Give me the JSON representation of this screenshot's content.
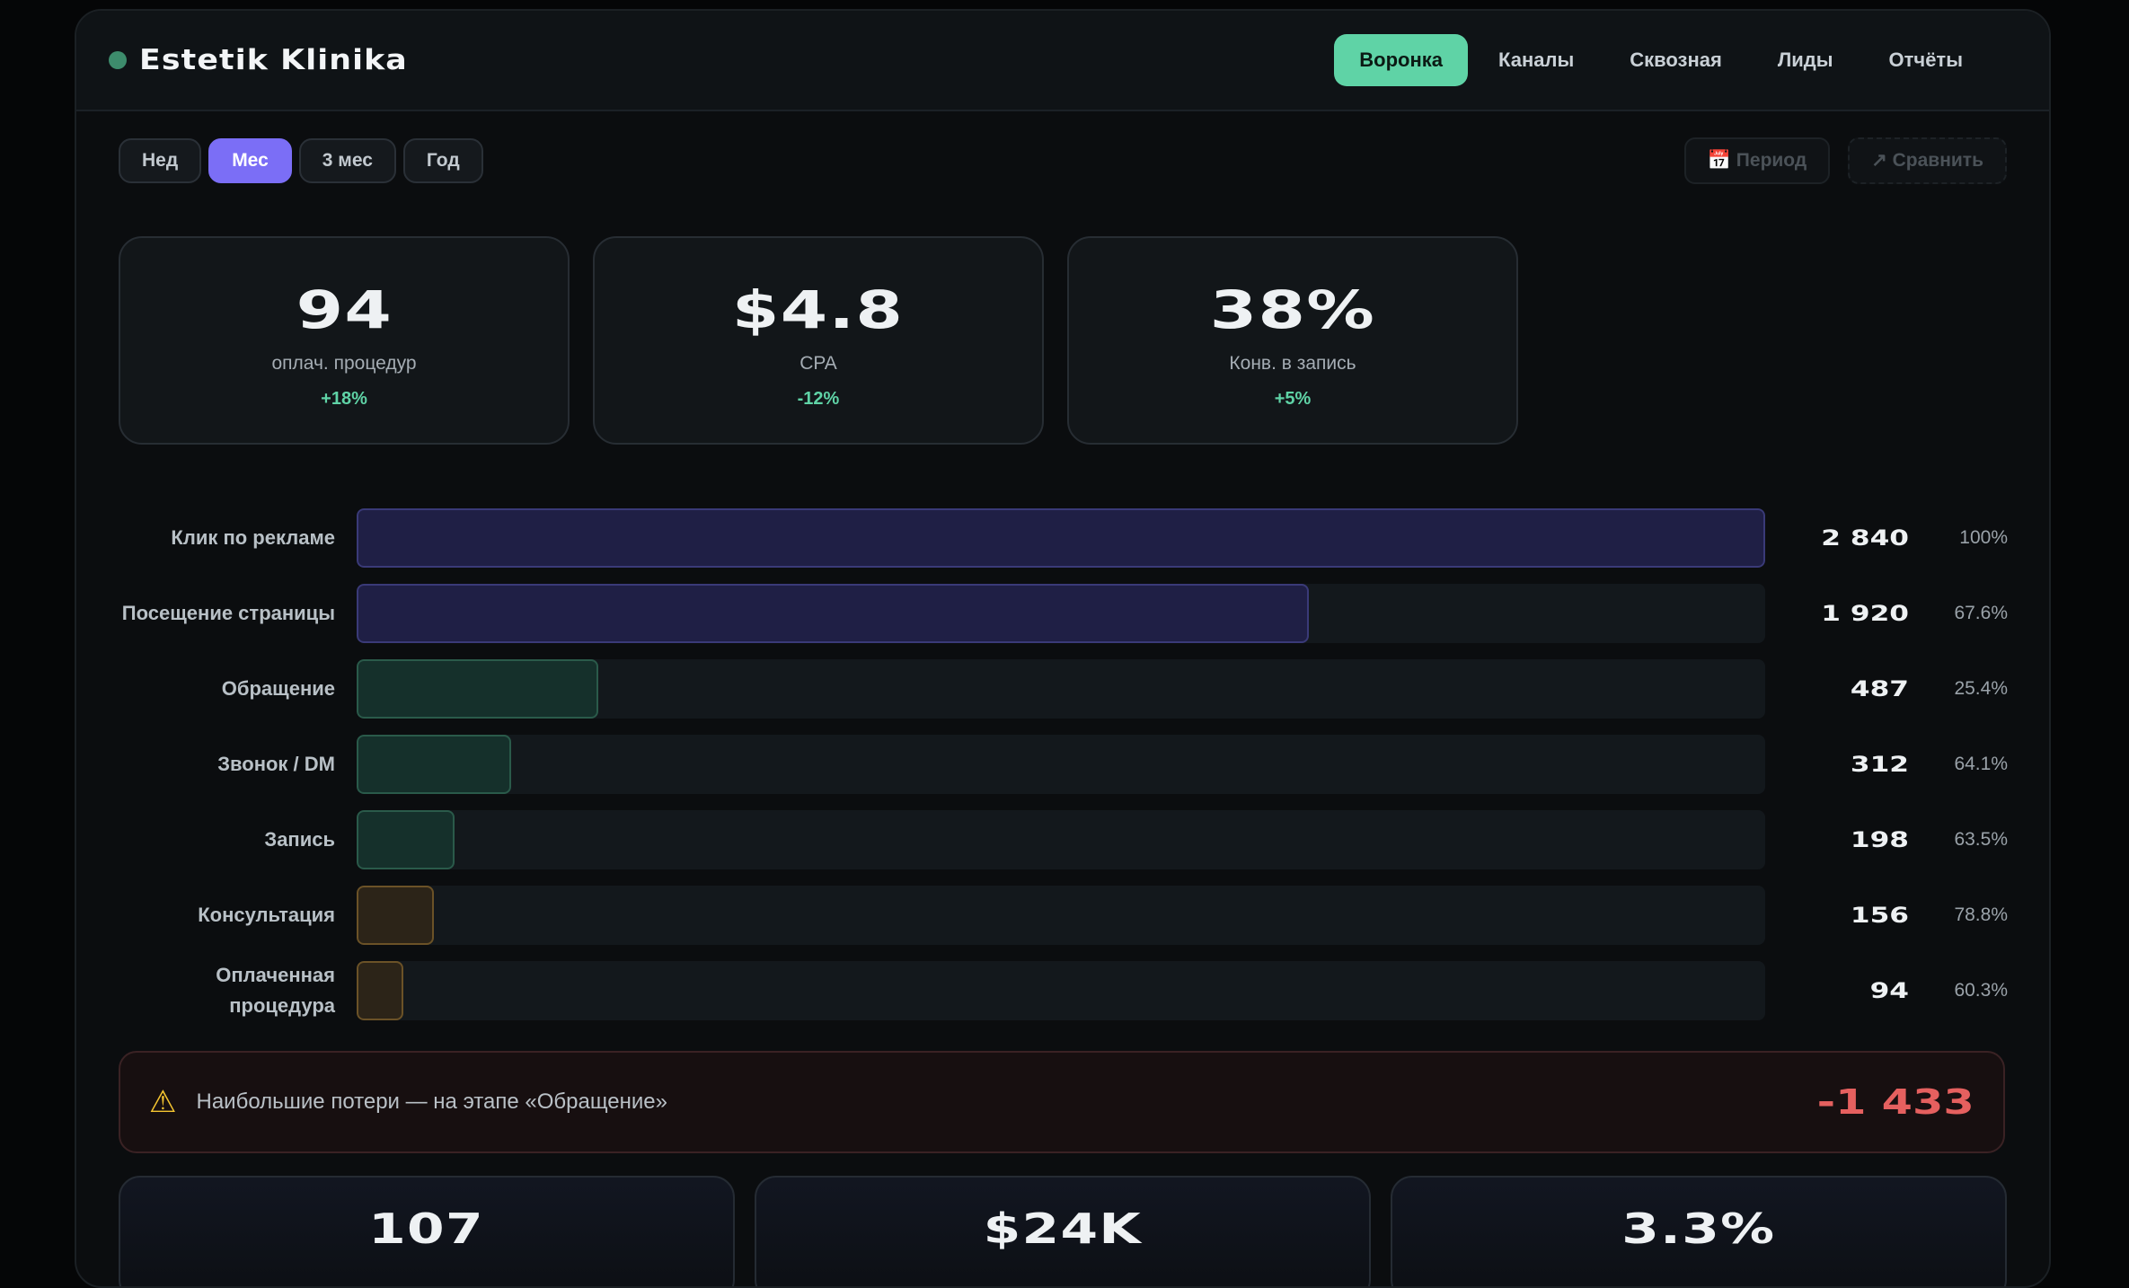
{
  "brand": {
    "name": "Estetik Klinika",
    "dot_color": "#3d8c6c"
  },
  "nav": {
    "tabs": [
      {
        "label": "Воронка",
        "active": true
      },
      {
        "label": "Каналы",
        "active": false
      },
      {
        "label": "Сквозная",
        "active": false
      },
      {
        "label": "Лиды",
        "active": false
      },
      {
        "label": "Отчёты",
        "active": false
      }
    ]
  },
  "periods": {
    "options": [
      {
        "label": "Нед",
        "active": false
      },
      {
        "label": "Мес",
        "active": true
      },
      {
        "label": "3 мес",
        "active": false
      },
      {
        "label": "Год",
        "active": false
      }
    ]
  },
  "tools": {
    "period_label": "📅 Период",
    "compare_label": "↗ Сравнить"
  },
  "kpis": [
    {
      "value": "94",
      "label": "оплач. процедур",
      "delta": "+18%"
    },
    {
      "value": "$4.8",
      "label": "CPA",
      "delta": "-12%"
    },
    {
      "value": "38%",
      "label": "Конв. в запись",
      "delta": "+5%"
    }
  ],
  "funnel": {
    "stages": [
      {
        "label": "Клик по рекламе",
        "count_label": "2 840",
        "value": 2840,
        "pct": "100%",
        "color": "purple"
      },
      {
        "label": "Посещение страницы",
        "count_label": "1 920",
        "value": 1920,
        "pct": "67.6%",
        "color": "purple"
      },
      {
        "label": "Обращение",
        "count_label": "487",
        "value": 487,
        "pct": "25.4%",
        "color": "green"
      },
      {
        "label": "Звонок / DM",
        "count_label": "312",
        "value": 312,
        "pct": "64.1%",
        "color": "green"
      },
      {
        "label": "Запись",
        "count_label": "198",
        "value": 198,
        "pct": "63.5%",
        "color": "green"
      },
      {
        "label": "Консультация",
        "count_label": "156",
        "value": 156,
        "pct": "78.8%",
        "color": "amber"
      },
      {
        "label": "Оплаченная процедура",
        "count_label": "94",
        "value": 94,
        "pct": "60.3%",
        "color": "amber"
      }
    ]
  },
  "alert": {
    "text": "Наибольшие потери — на этапе «Обращение»",
    "value": "-1 433"
  },
  "bottom_cards": [
    {
      "value": "107"
    },
    {
      "value": "$24K"
    },
    {
      "value": "3.3%"
    }
  ],
  "colors": {
    "accent": "#5fd3a6",
    "period_active": "#7b6ef6",
    "loss": "#e5605f",
    "bar_purple": "#1f1f45",
    "bar_green": "#15302b",
    "bar_amber": "#2c2418"
  }
}
